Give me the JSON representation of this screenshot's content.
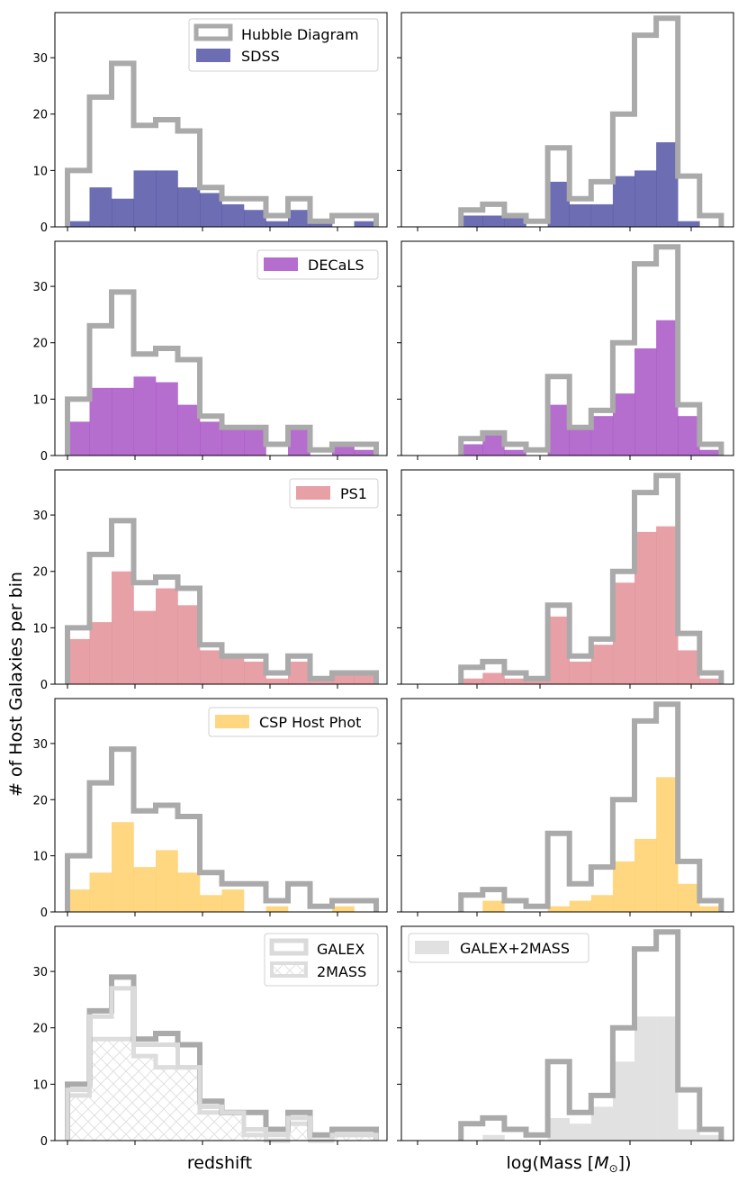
{
  "figure": {
    "ylabel": "# of Host Galaxies per bin",
    "xlabel_left": "redshift",
    "xlabel_right": "log(Mass [M⊙])"
  },
  "chart_data": {
    "type": "histogram-grid",
    "rows": 5,
    "shared_ylim": [
      0,
      38
    ],
    "y_ticks": [
      0,
      10,
      20,
      30
    ],
    "redshift_bins": 14,
    "mass_bins": 14,
    "hubble_diagram": {
      "name": "Hubble Diagram",
      "color": "#aaaaaa",
      "redshift": [
        10,
        23,
        29,
        18,
        19,
        17,
        7,
        5,
        5,
        2,
        5,
        1,
        2,
        2
      ],
      "mass": [
        0,
        0,
        3,
        4,
        2,
        1,
        14,
        5,
        8,
        20,
        34,
        37,
        9,
        2
      ]
    },
    "panels": [
      {
        "name": "SDSS",
        "color": "#3c3c9a",
        "style": "fill",
        "redshift": [
          1,
          7,
          5,
          10,
          10,
          7,
          6,
          4,
          3,
          1,
          3,
          1,
          0,
          1
        ],
        "mass": [
          0,
          0,
          2,
          2,
          2,
          0,
          8,
          4,
          4,
          9,
          10,
          15,
          1,
          0
        ],
        "legend": [
          "Hubble Diagram",
          "SDSS"
        ]
      },
      {
        "name": "DECaLS",
        "color": "#9c3cbd",
        "style": "fill",
        "redshift": [
          6,
          12,
          12,
          14,
          13,
          9,
          6,
          5,
          5,
          0,
          5,
          0,
          2,
          1
        ],
        "mass": [
          0,
          0,
          2,
          4,
          1,
          0,
          9,
          5,
          7,
          11,
          19,
          24,
          7,
          1
        ],
        "legend": [
          "DECaLS"
        ]
      },
      {
        "name": "PS1",
        "color": "#dd8088",
        "style": "fill",
        "redshift": [
          8,
          11,
          20,
          13,
          17,
          14,
          6,
          5,
          4,
          1,
          4,
          1,
          2,
          2
        ],
        "mass": [
          0,
          0,
          1,
          2,
          1,
          1,
          12,
          4,
          7,
          18,
          27,
          28,
          6,
          1
        ],
        "legend": [
          "PS1"
        ]
      },
      {
        "name": "CSP Host Phot",
        "color": "#ffca55",
        "style": "fill",
        "redshift": [
          4,
          7,
          16,
          8,
          11,
          7,
          3,
          4,
          0,
          1,
          0,
          0,
          1,
          0
        ],
        "mass": [
          0,
          0,
          0,
          2,
          0,
          0,
          1,
          2,
          3,
          9,
          13,
          24,
          5,
          1
        ],
        "legend": [
          "CSP Host Phot"
        ]
      },
      {
        "name": "GALEX / 2MASS",
        "style": "mixed",
        "galex_redshift": [
          9,
          22,
          27,
          17,
          17,
          13,
          6,
          5,
          2,
          1,
          4,
          0,
          1,
          1
        ],
        "twomass_redshift": [
          8,
          18,
          18,
          15,
          13,
          13,
          5,
          5,
          1,
          0,
          3,
          0,
          1,
          1
        ],
        "galex_2mass_mass": [
          0,
          0,
          0,
          1,
          0,
          0,
          4,
          3,
          6,
          14,
          22,
          22,
          2,
          1
        ],
        "legend": [
          "GALEX",
          "2MASS",
          "GALEX+2MASS"
        ]
      }
    ]
  }
}
